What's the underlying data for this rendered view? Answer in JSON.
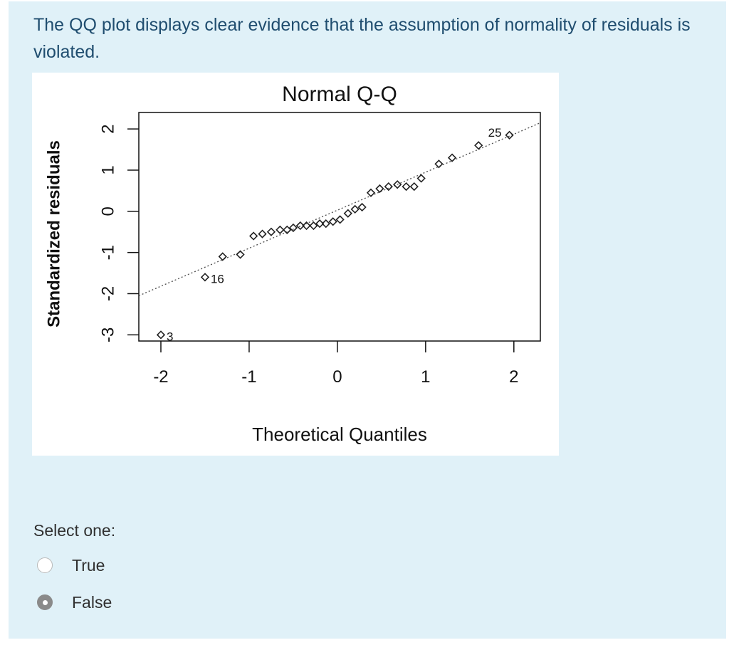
{
  "question": {
    "text": "The QQ plot displays clear evidence that the assumption of normality of residuals is violated."
  },
  "answer": {
    "prompt": "Select one:",
    "options": [
      {
        "label": "True",
        "selected": false
      },
      {
        "label": "False",
        "selected": true
      }
    ]
  },
  "chart_data": {
    "type": "scatter",
    "title": "Normal Q-Q",
    "xlabel": "Theoretical Quantiles",
    "ylabel": "Standardized residuals",
    "xlim": [
      -2.25,
      2.3
    ],
    "ylim": [
      -3.15,
      2.4
    ],
    "xticks": [
      -2,
      -1,
      0,
      1,
      2
    ],
    "yticks": [
      -3,
      -2,
      -1,
      0,
      1,
      2
    ],
    "grid": false,
    "reference_line": {
      "x": [
        -2.25,
        2.3
      ],
      "y": [
        -2.05,
        2.15
      ],
      "style": "dotted"
    },
    "series": [
      {
        "x": [
          -2.0,
          -1.5,
          -1.3,
          -1.1,
          -0.95,
          -0.85,
          -0.75,
          -0.65,
          -0.57,
          -0.5,
          -0.42,
          -0.35,
          -0.27,
          -0.2,
          -0.13,
          -0.05,
          0.03,
          0.12,
          0.2,
          0.28,
          0.38,
          0.48,
          0.58,
          0.68,
          0.78,
          0.87,
          0.95,
          1.15,
          1.3,
          1.6,
          1.95
        ],
        "y": [
          -3.0,
          -1.6,
          -1.1,
          -1.05,
          -0.6,
          -0.55,
          -0.5,
          -0.45,
          -0.45,
          -0.4,
          -0.35,
          -0.35,
          -0.35,
          -0.3,
          -0.3,
          -0.25,
          -0.2,
          -0.05,
          0.05,
          0.1,
          0.45,
          0.55,
          0.6,
          0.65,
          0.6,
          0.6,
          0.8,
          1.15,
          1.3,
          1.6,
          1.85
        ]
      }
    ],
    "point_labels": [
      {
        "x": -2.0,
        "y": -3.0,
        "text": "3"
      },
      {
        "x": -1.5,
        "y": -1.6,
        "text": "16"
      },
      {
        "x": 1.95,
        "y": 1.85,
        "text": "25"
      }
    ]
  }
}
